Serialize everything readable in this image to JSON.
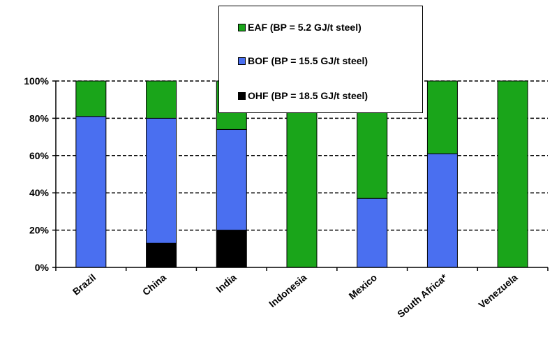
{
  "chart_data": {
    "type": "bar",
    "stacked": true,
    "categories": [
      "Brazil",
      "China",
      "India",
      "Indonesia",
      "Mexico",
      "South Africa*",
      "Venezuela"
    ],
    "series": [
      {
        "name": "OHF (BP = 18.5 GJ/t steel)",
        "color": "#000000",
        "values": [
          0,
          13,
          20,
          0,
          0,
          0,
          0
        ]
      },
      {
        "name": "BOF (BP = 15.5 GJ/t steel)",
        "color": "#4a6ff0",
        "values": [
          81,
          67,
          54,
          0,
          37,
          61,
          0
        ]
      },
      {
        "name": "EAF (BP = 5.2 GJ/t steel)",
        "color": "#1aa51a",
        "values": [
          19,
          20,
          26,
          100,
          63,
          39,
          100
        ]
      }
    ],
    "legend_order": [
      "EAF (BP = 5.2 GJ/t steel)",
      "BOF (BP = 15.5 GJ/t steel)",
      "OHF (BP = 18.5 GJ/t steel)"
    ],
    "legend_position": "top-center",
    "yticks": [
      "0%",
      "20%",
      "40%",
      "60%",
      "80%",
      "100%"
    ],
    "ylim": [
      0,
      100
    ],
    "grid": "dashed horizontal",
    "title": "",
    "xlabel": "",
    "ylabel": ""
  }
}
